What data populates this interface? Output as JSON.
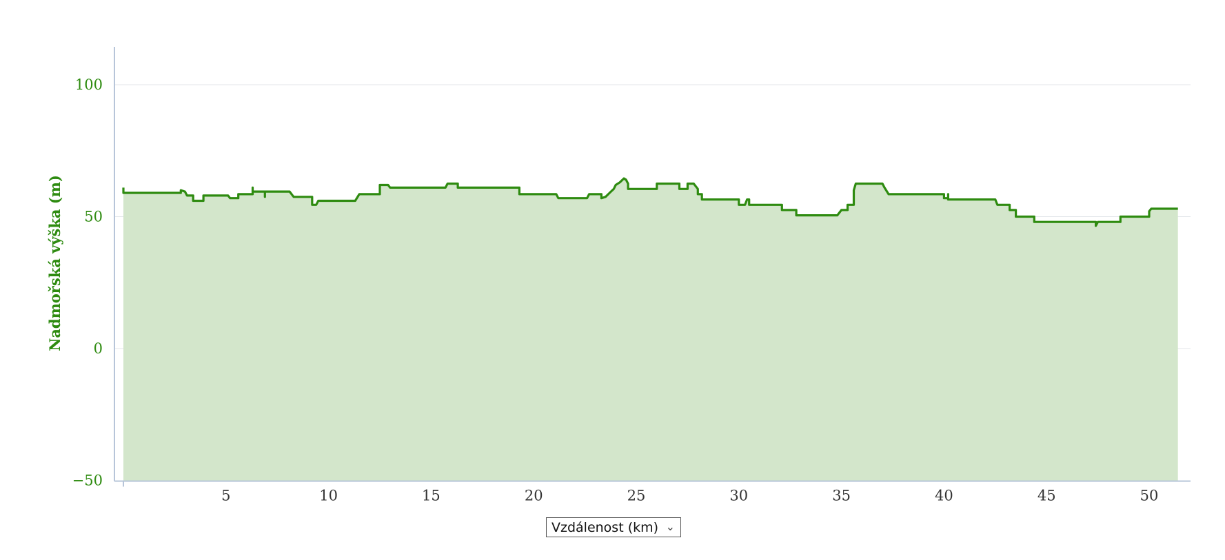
{
  "chart_data": {
    "type": "area",
    "title": "",
    "ylabel": "Nadmořská výška (m)",
    "xlabel": "",
    "xlim": [
      0,
      52
    ],
    "ylim": [
      -50,
      115
    ],
    "y_ticks": [
      100,
      50,
      0,
      -50
    ],
    "x_ticks": [
      5,
      10,
      15,
      20,
      25,
      30,
      35,
      40,
      45,
      50
    ],
    "grid": true,
    "color": "#2e8b10",
    "fill_color": "#d3e6cb",
    "series": [
      {
        "points": [
          [
            0,
            61
          ],
          [
            0,
            59
          ],
          [
            2.8,
            59
          ],
          [
            2.8,
            60
          ],
          [
            3,
            59.5
          ],
          [
            3.1,
            58
          ],
          [
            3.4,
            58
          ],
          [
            3.4,
            56
          ],
          [
            3.9,
            56
          ],
          [
            3.9,
            58
          ],
          [
            5.1,
            58
          ],
          [
            5.2,
            57
          ],
          [
            5.6,
            57
          ],
          [
            5.6,
            58.5
          ],
          [
            6.3,
            58.5
          ],
          [
            6.3,
            61
          ],
          [
            6.3,
            59.5
          ],
          [
            6.9,
            59.5
          ],
          [
            6.9,
            57.5
          ],
          [
            6.9,
            59.5
          ],
          [
            8.1,
            59.5
          ],
          [
            8.3,
            57.5
          ],
          [
            9.2,
            57.5
          ],
          [
            9.2,
            54.5
          ],
          [
            9.4,
            54.5
          ],
          [
            9.5,
            56
          ],
          [
            11.3,
            56
          ],
          [
            11.5,
            58.5
          ],
          [
            12.5,
            58.5
          ],
          [
            12.5,
            62
          ],
          [
            12.9,
            62
          ],
          [
            13,
            61
          ],
          [
            15.7,
            61
          ],
          [
            15.8,
            62.5
          ],
          [
            16.3,
            62.5
          ],
          [
            16.3,
            61
          ],
          [
            19.3,
            61
          ],
          [
            19.3,
            58.5
          ],
          [
            21.1,
            58.5
          ],
          [
            21.2,
            57
          ],
          [
            22.6,
            57
          ],
          [
            22.7,
            58.5
          ],
          [
            23.3,
            58.5
          ],
          [
            23.3,
            57
          ],
          [
            23.5,
            57.5
          ],
          [
            23.7,
            59
          ],
          [
            23.9,
            60.5
          ],
          [
            24,
            62
          ],
          [
            24.2,
            63
          ],
          [
            24.4,
            64.5
          ],
          [
            24.5,
            64
          ],
          [
            24.6,
            62.5
          ],
          [
            24.6,
            60.5
          ],
          [
            26,
            60.5
          ],
          [
            26,
            62.5
          ],
          [
            27.1,
            62.5
          ],
          [
            27.1,
            60.5
          ],
          [
            27.5,
            60.5
          ],
          [
            27.5,
            62.5
          ],
          [
            27.8,
            62.5
          ],
          [
            28,
            60.5
          ],
          [
            28,
            58.5
          ],
          [
            28.2,
            58.5
          ],
          [
            28.2,
            56.5
          ],
          [
            30,
            56.5
          ],
          [
            30,
            54.5
          ],
          [
            30.3,
            54.5
          ],
          [
            30.4,
            56.5
          ],
          [
            30.5,
            56.5
          ],
          [
            30.5,
            54.5
          ],
          [
            32.1,
            54.5
          ],
          [
            32.1,
            52.5
          ],
          [
            32.8,
            52.5
          ],
          [
            32.8,
            50.5
          ],
          [
            34.8,
            50.5
          ],
          [
            35,
            52.5
          ],
          [
            35.3,
            52.5
          ],
          [
            35.3,
            54.5
          ],
          [
            35.6,
            54.5
          ],
          [
            35.6,
            60
          ],
          [
            35.7,
            62.5
          ],
          [
            37,
            62.5
          ],
          [
            37.1,
            61
          ],
          [
            37.3,
            58.5
          ],
          [
            40,
            58.5
          ],
          [
            40,
            57
          ],
          [
            40.2,
            57
          ],
          [
            40.2,
            58.5
          ],
          [
            40.2,
            56.5
          ],
          [
            42.5,
            56.5
          ],
          [
            42.6,
            54.5
          ],
          [
            43.2,
            54.5
          ],
          [
            43.2,
            52.5
          ],
          [
            43.5,
            52.5
          ],
          [
            43.5,
            50
          ],
          [
            44.4,
            50
          ],
          [
            44.4,
            48
          ],
          [
            47.4,
            48
          ],
          [
            47.4,
            46.5
          ],
          [
            47.5,
            48
          ],
          [
            48.6,
            48
          ],
          [
            48.6,
            50
          ],
          [
            50,
            50
          ],
          [
            50,
            52
          ],
          [
            50.1,
            53
          ],
          [
            51.4,
            53
          ]
        ]
      }
    ]
  },
  "controls": {
    "x_axis_select": "Vzdálenost (km)"
  }
}
